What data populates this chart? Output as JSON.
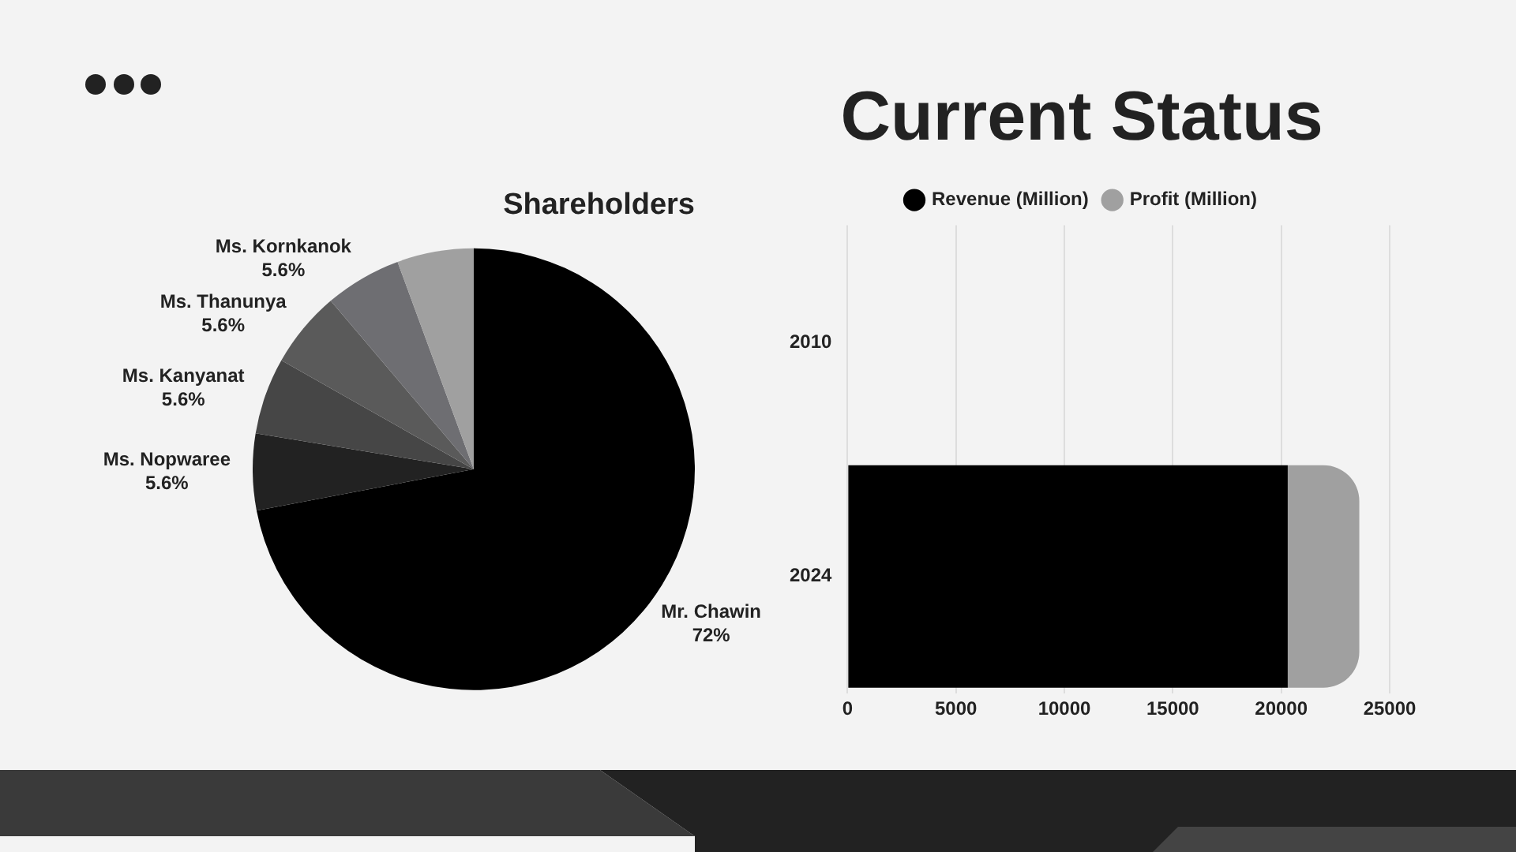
{
  "chart_data": [
    {
      "type": "pie",
      "title": "Shareholders",
      "categories": [
        "Mr. Chawin",
        "Ms. Nopwaree",
        "Ms. Kanyanat",
        "Ms. Thanunya",
        "Ms. Kornkanok",
        null
      ],
      "values": [
        72,
        5.6,
        5.6,
        5.6,
        5.6,
        5.6
      ],
      "value_labels": [
        "72%",
        "5.6%",
        "5.6%",
        "5.6%",
        "5.6%",
        null
      ],
      "colors": [
        "#000000",
        "#222222",
        "#464646",
        "#5a5a5a",
        "#6e6e72",
        "#a0a0a0"
      ]
    },
    {
      "type": "bar",
      "title": "Current Status",
      "orientation": "horizontal",
      "stacked": true,
      "categories": [
        "2010",
        "2024"
      ],
      "series": [
        {
          "name": "Revenue (Million)",
          "color": "#000000",
          "values": [
            null,
            20300
          ]
        },
        {
          "name": "Profit (Million)",
          "color": "#a0a0a0",
          "values": [
            null,
            3300
          ]
        }
      ],
      "xlim": [
        0,
        25000
      ],
      "xticks": [
        0,
        5000,
        10000,
        15000,
        20000,
        25000
      ],
      "grid": "x",
      "legend": "top"
    }
  ]
}
